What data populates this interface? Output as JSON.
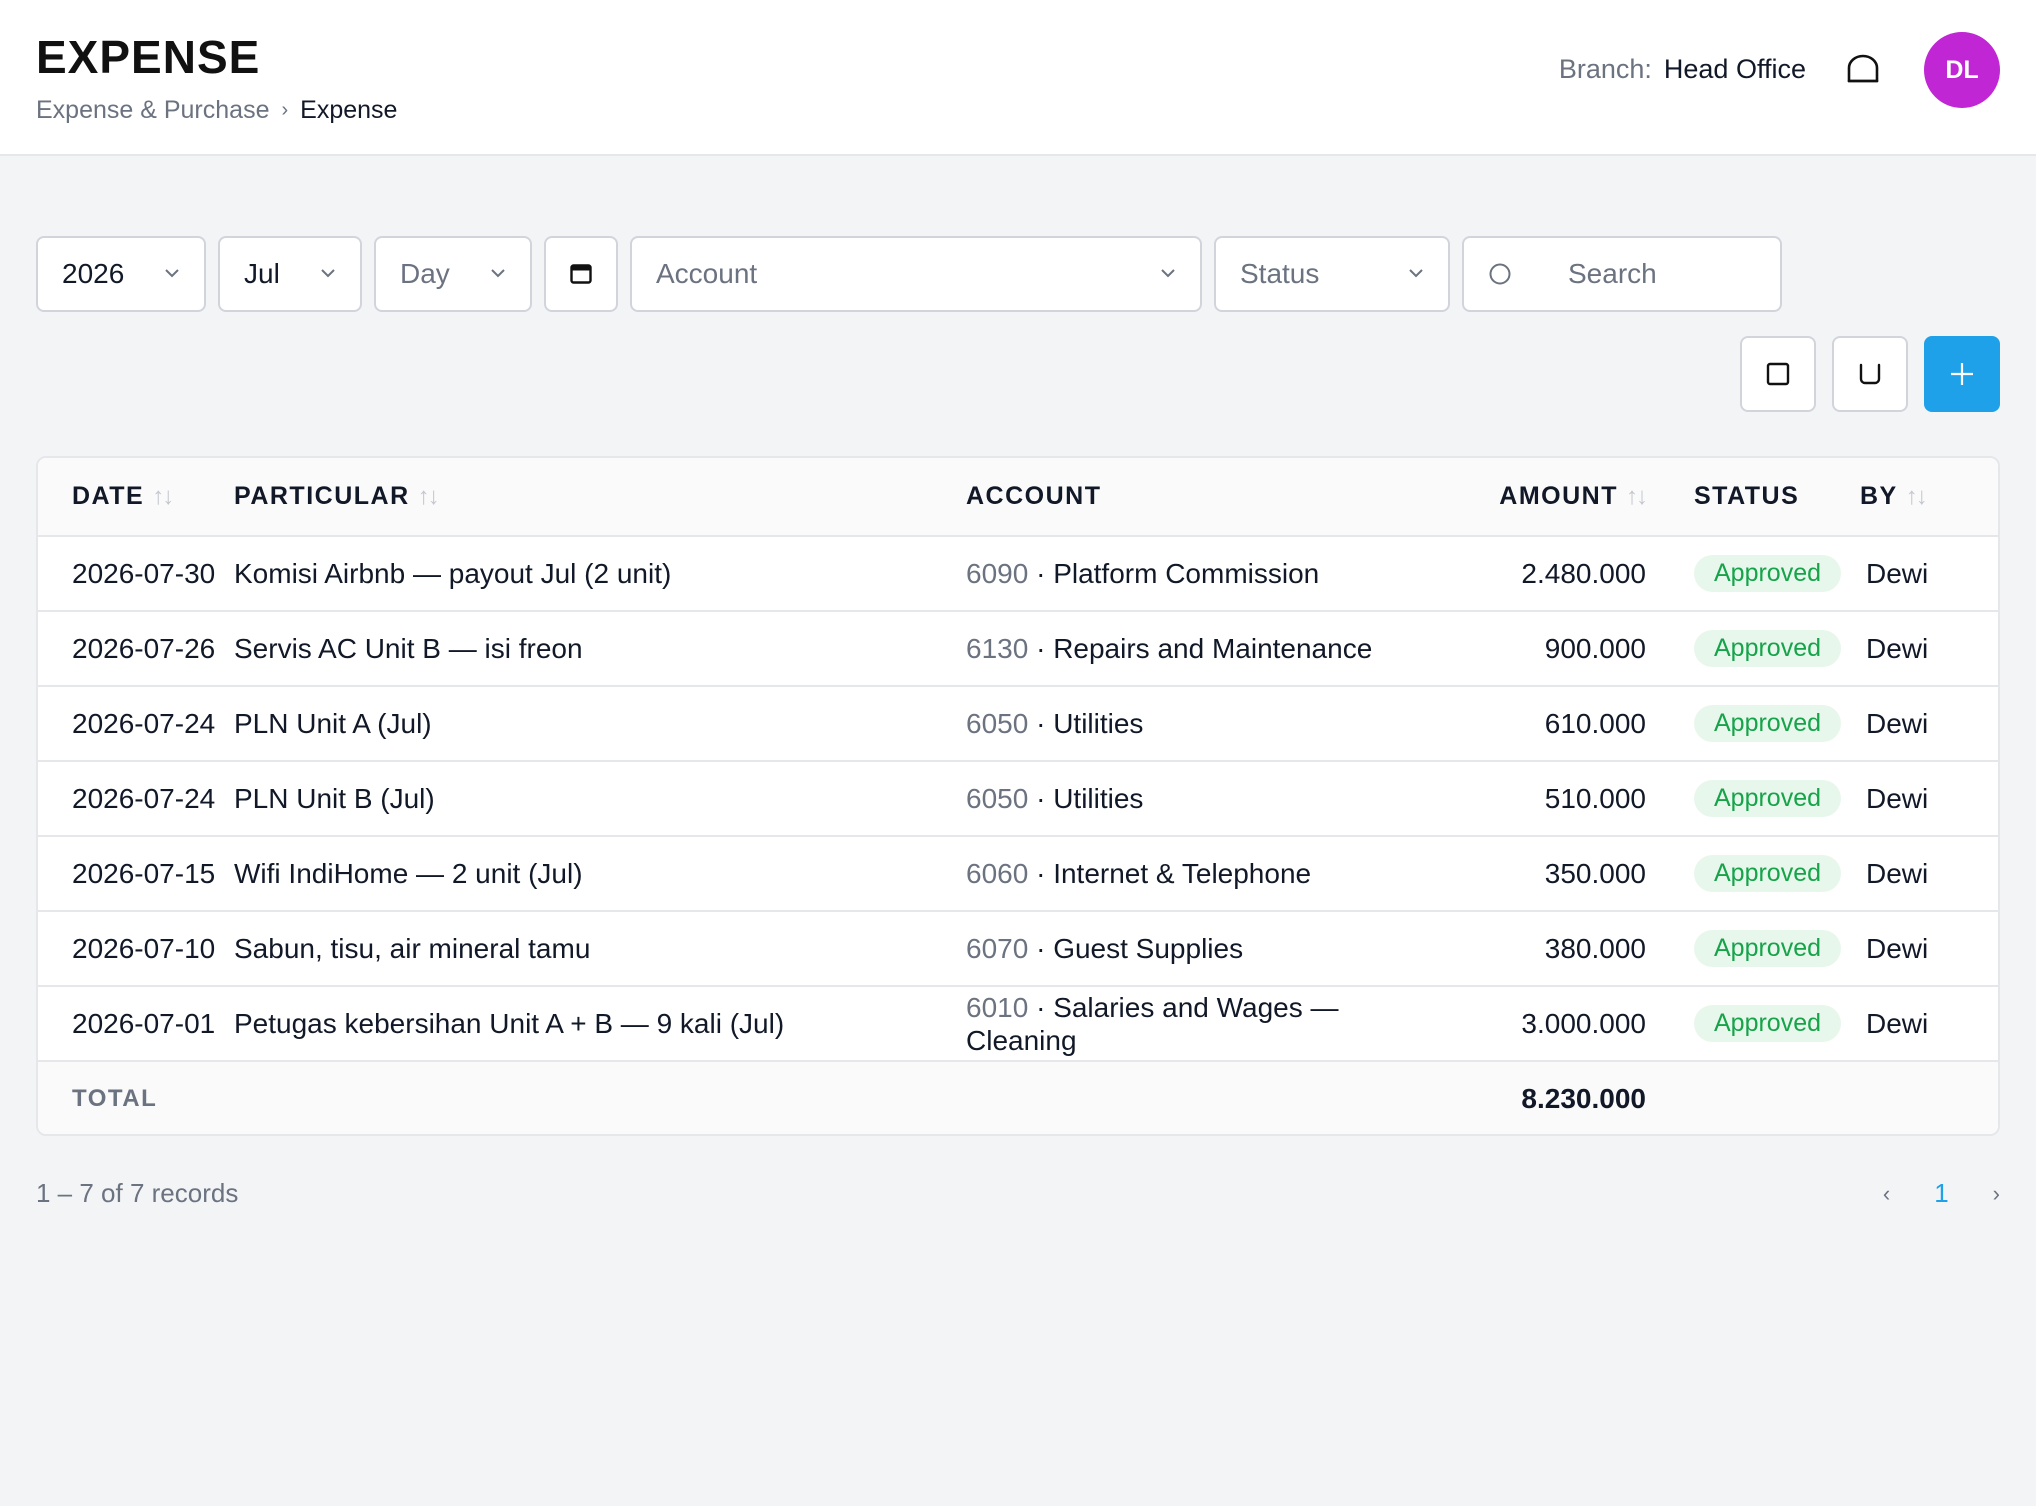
{
  "header": {
    "title": "EXPENSE",
    "breadcrumb": [
      "Expense & Purchase",
      "Expense"
    ],
    "breadcrumb_sep": "›",
    "branch_label": "Branch:",
    "branch_value": "Head Office",
    "avatar_initials": "DL",
    "avatar_color": "#c026d3"
  },
  "filters": {
    "year": "2026",
    "month": "Jul",
    "day_placeholder": "Day",
    "account_placeholder": "Account",
    "status_placeholder": "Status",
    "search_placeholder": "Search"
  },
  "table": {
    "columns": [
      "DATE",
      "PARTICULAR",
      "ACCOUNT",
      "AMOUNT",
      "STATUS",
      "BY"
    ],
    "rows": [
      {
        "date": "2026-07-30",
        "particular": "Komisi Airbnb — payout Jul (2 unit)",
        "code": "6090",
        "account": "Platform Commission",
        "amount": "2.480.000",
        "status": "Approved",
        "by": "Dewi"
      },
      {
        "date": "2026-07-26",
        "particular": "Servis AC Unit B — isi freon",
        "code": "6130",
        "account": "Repairs and Maintenance",
        "amount": "900.000",
        "status": "Approved",
        "by": "Dewi"
      },
      {
        "date": "2026-07-24",
        "particular": "PLN Unit A (Jul)",
        "code": "6050",
        "account": "Utilities",
        "amount": "610.000",
        "status": "Approved",
        "by": "Dewi"
      },
      {
        "date": "2026-07-24",
        "particular": "PLN Unit B (Jul)",
        "code": "6050",
        "account": "Utilities",
        "amount": "510.000",
        "status": "Approved",
        "by": "Dewi"
      },
      {
        "date": "2026-07-15",
        "particular": "Wifi IndiHome — 2 unit (Jul)",
        "code": "6060",
        "account": "Internet & Telephone",
        "amount": "350.000",
        "status": "Approved",
        "by": "Dewi"
      },
      {
        "date": "2026-07-10",
        "particular": "Sabun, tisu, air mineral tamu",
        "code": "6070",
        "account": "Guest Supplies",
        "amount": "380.000",
        "status": "Approved",
        "by": "Dewi"
      },
      {
        "date": "2026-07-01",
        "particular": "Petugas kebersihan Unit A + B — 9 kali (Jul)",
        "code": "6010",
        "account": "Salaries and Wages — Cleaning",
        "amount": "3.000.000",
        "status": "Approved",
        "by": "Dewi"
      }
    ],
    "total_label": "TOTAL",
    "total_amount": "8.230.000"
  },
  "footer": {
    "records_text": "1 – 7 of 7 records",
    "prev": "‹",
    "page": "1",
    "next": "›"
  },
  "colors": {
    "accent": "#1ea1e8",
    "status_approved_text": "#16a34a",
    "status_approved_bg": "#e8f7ec"
  },
  "icons": [
    "chevron-down-icon",
    "calendar-icon",
    "search-icon",
    "bell-icon",
    "columns-icon",
    "export-icon",
    "plus-icon",
    "sort-icon"
  ]
}
